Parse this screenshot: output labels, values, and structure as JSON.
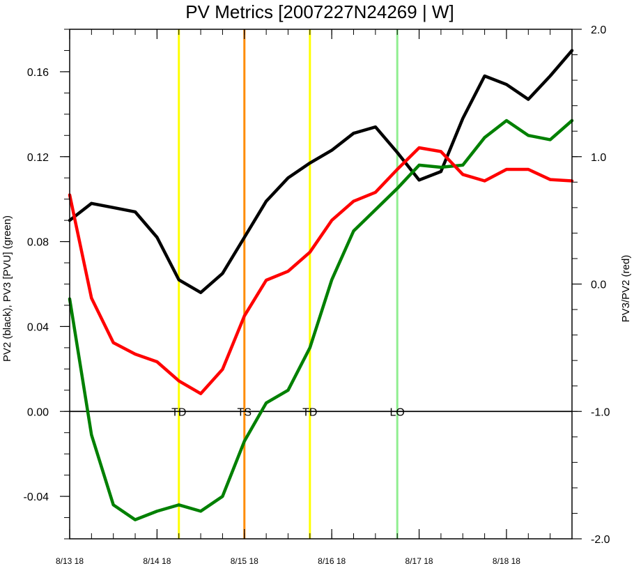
{
  "chart_data": {
    "type": "line",
    "title": "PV Metrics [2007227N24269 | W]",
    "ylabel_left": "PV2 (black), PV3 [PVU] (green)",
    "ylabel_right": "PV3/PV2 (red)",
    "x_ticks": [
      {
        "x": 0,
        "label": "8/13 18"
      },
      {
        "x": 4,
        "label": "8/14 18"
      },
      {
        "x": 8,
        "label": "8/15 18"
      },
      {
        "x": 12,
        "label": "8/16 18"
      },
      {
        "x": 16,
        "label": "8/17 18"
      },
      {
        "x": 20,
        "label": "8/18 18"
      }
    ],
    "xlim": [
      0,
      23
    ],
    "ylim_left": [
      -0.06,
      0.18
    ],
    "ylim_right": [
      -2.0,
      2.0
    ],
    "yticks_left": [
      {
        "v": -0.04,
        "label": "-0.04"
      },
      {
        "v": 0.0,
        "label": "0.00"
      },
      {
        "v": 0.04,
        "label": "0.04"
      },
      {
        "v": 0.08,
        "label": "0.08"
      },
      {
        "v": 0.12,
        "label": "0.12"
      },
      {
        "v": 0.16,
        "label": "0.16"
      }
    ],
    "yticks_right": [
      {
        "v": -2.0,
        "label": "-2.0"
      },
      {
        "v": -1.0,
        "label": "-1.0"
      },
      {
        "v": 0.0,
        "label": "0.0"
      },
      {
        "v": 1.0,
        "label": "1.0"
      },
      {
        "v": 2.0,
        "label": "2.0"
      }
    ],
    "series": [
      {
        "axis": "left",
        "color": "#000000",
        "values": [
          0.09,
          0.098,
          0.096,
          0.094,
          0.082,
          0.062,
          0.056,
          0.065,
          0.082,
          0.099,
          0.11,
          0.117,
          0.123,
          0.131,
          0.134,
          0.122,
          0.109,
          0.113,
          0.138,
          0.158,
          0.154,
          0.147,
          0.158,
          0.17
        ]
      },
      {
        "axis": "left",
        "color": "#008000",
        "values": [
          0.053,
          -0.011,
          -0.044,
          -0.051,
          -0.047,
          -0.044,
          -0.047,
          -0.04,
          -0.014,
          0.004,
          0.01,
          0.03,
          0.062,
          0.085,
          0.095,
          0.105,
          0.116,
          0.115,
          0.116,
          0.129,
          0.137,
          0.13,
          0.128,
          0.137
        ]
      },
      {
        "axis": "right",
        "color": "#ff0000",
        "values": [
          0.7,
          -0.11,
          -0.46,
          -0.55,
          -0.61,
          -0.76,
          -0.86,
          -0.67,
          -0.25,
          0.03,
          0.1,
          0.25,
          0.5,
          0.65,
          0.72,
          0.9,
          1.07,
          1.04,
          0.86,
          0.81,
          0.9,
          0.9,
          0.82,
          0.81
        ]
      }
    ],
    "vlines": [
      {
        "x": 5.0,
        "color": "#ffff00",
        "label": "TD"
      },
      {
        "x": 8.0,
        "color": "#ff8c00",
        "label": "TS"
      },
      {
        "x": 11.0,
        "color": "#ffff00",
        "label": "TD"
      },
      {
        "x": 15.0,
        "color": "#90ee90",
        "label": "LO"
      }
    ],
    "zero_line": 0.0,
    "grid": false
  }
}
